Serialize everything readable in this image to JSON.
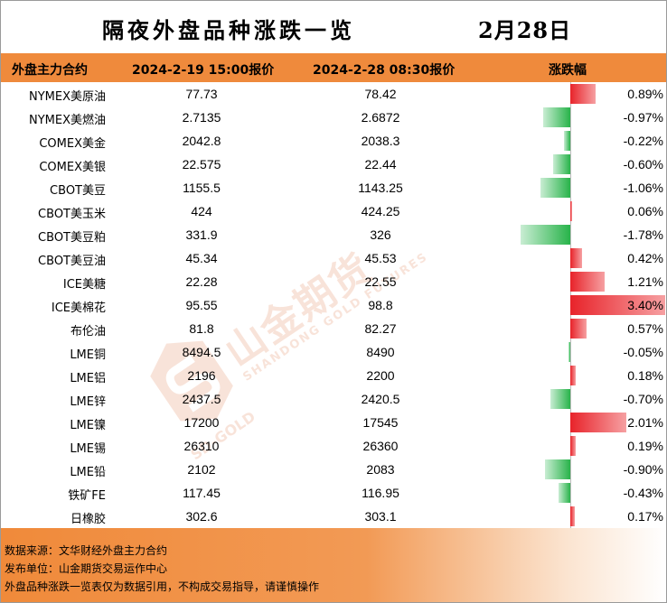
{
  "header": {
    "title": "隔夜外盘品种涨跌一览",
    "date": "2月28日"
  },
  "columns": {
    "name": "外盘主力合约",
    "date1": "2024-2-19 15:00报价",
    "date2": "2024-2-28 08:30报价",
    "change": "涨跌幅"
  },
  "rows": [
    {
      "name": "NYMEX美原油",
      "v1": "77.73",
      "v2": "78.42",
      "pct": "0.89%",
      "change": 0.89
    },
    {
      "name": "NYMEX美燃油",
      "v1": "2.7135",
      "v2": "2.6872",
      "pct": "-0.97%",
      "change": -0.97
    },
    {
      "name": "COMEX美金",
      "v1": "2042.8",
      "v2": "2038.3",
      "pct": "-0.22%",
      "change": -0.22
    },
    {
      "name": "COMEX美银",
      "v1": "22.575",
      "v2": "22.44",
      "pct": "-0.60%",
      "change": -0.6
    },
    {
      "name": "CBOT美豆",
      "v1": "1155.5",
      "v2": "1143.25",
      "pct": "-1.06%",
      "change": -1.06
    },
    {
      "name": "CBOT美玉米",
      "v1": "424",
      "v2": "424.25",
      "pct": "0.06%",
      "change": 0.06
    },
    {
      "name": "CBOT美豆粕",
      "v1": "331.9",
      "v2": "326",
      "pct": "-1.78%",
      "change": -1.78
    },
    {
      "name": "CBOT美豆油",
      "v1": "45.34",
      "v2": "45.53",
      "pct": "0.42%",
      "change": 0.42
    },
    {
      "name": "ICE美糖",
      "v1": "22.28",
      "v2": "22.55",
      "pct": "1.21%",
      "change": 1.21
    },
    {
      "name": "ICE美棉花",
      "v1": "95.55",
      "v2": "98.8",
      "pct": "3.40%",
      "change": 3.4
    },
    {
      "name": "布伦油",
      "v1": "81.8",
      "v2": "82.27",
      "pct": "0.57%",
      "change": 0.57
    },
    {
      "name": "LME铜",
      "v1": "8494.5",
      "v2": "8490",
      "pct": "-0.05%",
      "change": -0.05
    },
    {
      "name": "LME铝",
      "v1": "2196",
      "v2": "2200",
      "pct": "0.18%",
      "change": 0.18
    },
    {
      "name": "LME锌",
      "v1": "2437.5",
      "v2": "2420.5",
      "pct": "-0.70%",
      "change": -0.7
    },
    {
      "name": "LME镍",
      "v1": "17200",
      "v2": "17545",
      "pct": "2.01%",
      "change": 2.01
    },
    {
      "name": "LME锡",
      "v1": "26310",
      "v2": "26360",
      "pct": "0.19%",
      "change": 0.19
    },
    {
      "name": "LME铅",
      "v1": "2102",
      "v2": "2083",
      "pct": "-0.90%",
      "change": -0.9
    },
    {
      "name": "铁矿FE",
      "v1": "117.45",
      "v2": "116.95",
      "pct": "-0.43%",
      "change": -0.43
    },
    {
      "name": "日橡胶",
      "v1": "302.6",
      "v2": "303.1",
      "pct": "0.17%",
      "change": 0.17
    }
  ],
  "footer": {
    "source": "数据来源：文华财经外盘主力合约",
    "publisher": "发布单位：山金期货交易运作中心",
    "disclaimer": "外盘品种涨跌一览表仅为数据引用，不构成交易指导，请谨慎操作"
  },
  "watermark": {
    "brand": "山金期货",
    "english": "SHANDONG GOLD FUTURES",
    "logo_text": "SD-GOLD"
  },
  "colors": {
    "header_bg": "#ef8a3c",
    "up": "#e8232a",
    "down": "#28b34a"
  }
}
